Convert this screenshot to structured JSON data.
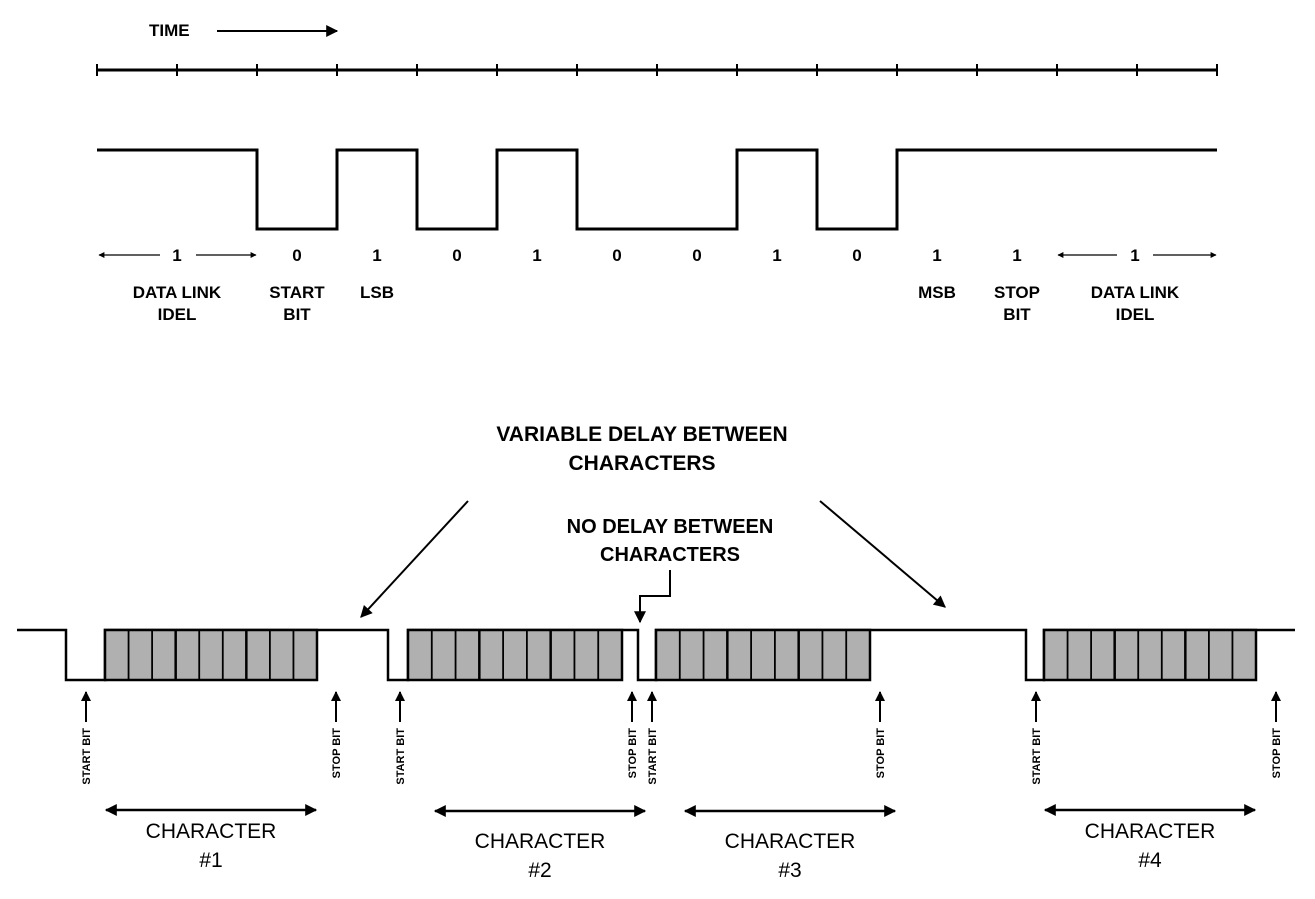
{
  "time": "TIME",
  "bits": [
    {
      "value": "1",
      "labels": [
        "DATA LINK",
        "IDEL"
      ]
    },
    {
      "value": "0",
      "labels": [
        "START",
        "BIT"
      ]
    },
    {
      "value": "1",
      "labels": [
        "LSB"
      ]
    },
    {
      "value": "0",
      "labels": []
    },
    {
      "value": "1",
      "labels": []
    },
    {
      "value": "0",
      "labels": []
    },
    {
      "value": "0",
      "labels": []
    },
    {
      "value": "1",
      "labels": []
    },
    {
      "value": "0",
      "labels": []
    },
    {
      "value": "1",
      "labels": [
        "MSB"
      ]
    },
    {
      "value": "1",
      "labels": [
        "STOP",
        "BIT"
      ]
    },
    {
      "value": "1",
      "labels": [
        "DATA LINK",
        "IDEL"
      ]
    }
  ],
  "variable_delay": [
    "VARIABLE DELAY BETWEEN",
    "CHARACTERS"
  ],
  "no_delay": [
    "NO DELAY BETWEEN",
    "CHARACTERS"
  ],
  "start_bit": "START BIT",
  "stop_bit": "STOP BIT",
  "characters": [
    {
      "name": "CHARACTER",
      "number": "#1"
    },
    {
      "name": "CHARACTER",
      "number": "#2"
    },
    {
      "name": "CHARACTER",
      "number": "#3"
    },
    {
      "name": "CHARACTER",
      "number": "#4"
    }
  ],
  "colors": {
    "line": "#000000",
    "data_box": "#b0b0b0"
  }
}
